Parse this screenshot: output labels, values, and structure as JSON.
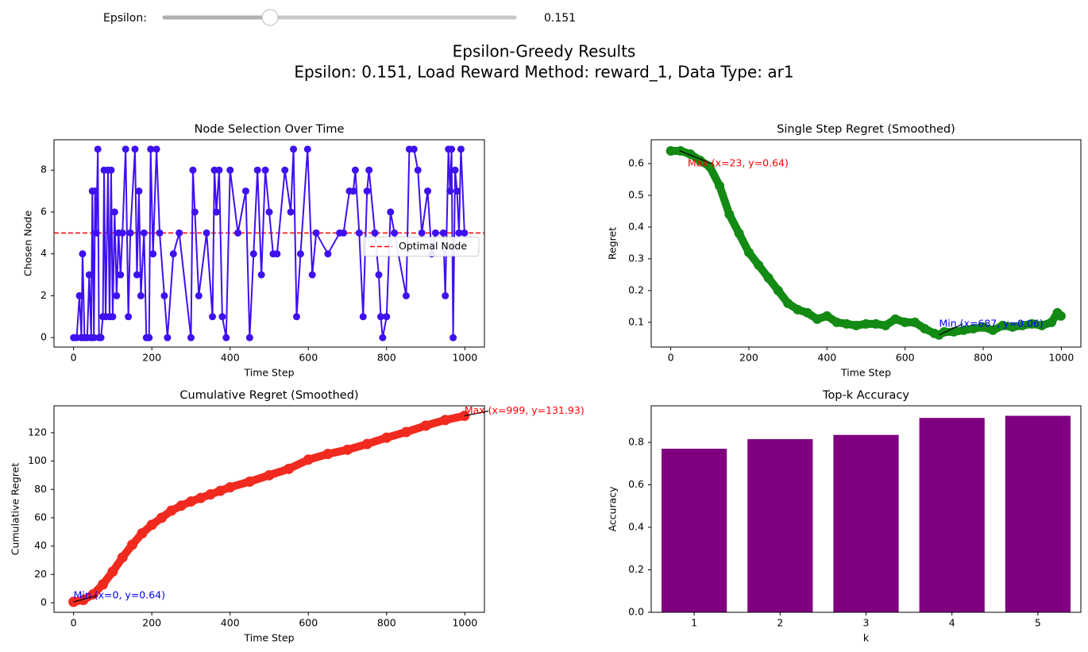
{
  "controls": {
    "slider_label": "Epsilon:",
    "slider_value": 0.151
  },
  "figure": {
    "title": "Epsilon-Greedy Results",
    "subtitle": "Epsilon: 0.151, Load Reward Method: reward_1, Data Type: ar1"
  },
  "chart_data": [
    {
      "type": "line",
      "title": "Node Selection Over Time",
      "xlabel": "Time Step",
      "ylabel": "Chosen Node",
      "x": [
        0,
        8,
        15,
        20,
        23,
        28,
        35,
        40,
        45,
        48,
        52,
        55,
        58,
        62,
        65,
        70,
        75,
        78,
        82,
        88,
        92,
        96,
        100,
        105,
        110,
        115,
        120,
        125,
        133,
        140,
        145,
        157,
        162,
        167,
        172,
        180,
        186,
        193,
        197,
        203,
        212,
        220,
        232,
        240,
        255,
        270,
        300,
        305,
        310,
        320,
        340,
        355,
        360,
        365,
        372,
        380,
        390,
        400,
        420,
        440,
        450,
        460,
        470,
        480,
        490,
        500,
        510,
        520,
        540,
        555,
        562,
        570,
        580,
        598,
        610,
        620,
        650,
        680,
        690,
        705,
        715,
        720,
        730,
        740,
        750,
        755,
        770,
        780,
        785,
        790,
        800,
        810,
        820,
        850,
        858,
        870,
        880,
        890,
        905,
        915,
        925,
        945,
        950,
        958,
        962,
        966,
        970,
        975,
        980,
        985,
        990,
        999
      ],
      "series": [
        {
          "name": "Chosen Node",
          "color": "#3f10f0",
          "values": [
            0,
            0,
            2,
            0,
            4,
            0,
            0,
            3,
            0,
            7,
            0,
            7,
            5,
            9,
            0,
            0,
            1,
            8,
            1,
            8,
            1,
            8,
            1,
            6,
            2,
            5,
            3,
            5,
            9,
            1,
            5,
            9,
            3,
            7,
            2,
            5,
            0,
            0,
            9,
            4,
            9,
            5,
            2,
            0,
            4,
            5,
            0,
            8,
            6,
            2,
            5,
            1,
            8,
            6,
            8,
            1,
            0,
            8,
            5,
            7,
            0,
            4,
            8,
            3,
            8,
            6,
            4,
            4,
            8,
            6,
            9,
            1,
            4,
            9,
            3,
            5,
            4,
            5,
            5,
            7,
            7,
            8,
            5,
            1,
            7,
            8,
            5,
            3,
            1,
            0,
            1,
            6,
            5,
            2,
            9,
            9,
            8,
            5,
            7,
            4,
            5,
            5,
            2,
            9,
            7,
            9,
            0,
            8,
            7,
            5,
            9,
            5
          ]
        }
      ],
      "reference_line": {
        "name": "Optimal Node",
        "value": 5,
        "color": "#ff0000"
      },
      "legend": "center right",
      "xlim": [
        -50,
        1050
      ],
      "xticks": [
        0,
        200,
        400,
        600,
        800,
        1000
      ],
      "ylim": [
        -0.45,
        9.45
      ],
      "yticks": [
        0,
        2,
        4,
        6,
        8
      ]
    },
    {
      "type": "line",
      "title": "Single Step Regret (Smoothed)",
      "xlabel": "Time Step",
      "ylabel": "Regret",
      "x": [
        0,
        25,
        50,
        75,
        100,
        125,
        150,
        175,
        200,
        225,
        250,
        275,
        300,
        325,
        350,
        375,
        400,
        425,
        450,
        475,
        500,
        525,
        550,
        575,
        600,
        625,
        650,
        675,
        687,
        700,
        725,
        750,
        775,
        800,
        825,
        850,
        875,
        900,
        925,
        950,
        975,
        990,
        999
      ],
      "series": [
        {
          "name": "Regret",
          "color": "#138a13",
          "values": [
            0.64,
            0.64,
            0.63,
            0.61,
            0.59,
            0.53,
            0.44,
            0.38,
            0.32,
            0.28,
            0.24,
            0.2,
            0.16,
            0.14,
            0.13,
            0.11,
            0.12,
            0.1,
            0.095,
            0.09,
            0.095,
            0.095,
            0.09,
            0.11,
            0.1,
            0.1,
            0.08,
            0.065,
            0.06,
            0.07,
            0.07,
            0.075,
            0.08,
            0.085,
            0.075,
            0.09,
            0.085,
            0.09,
            0.095,
            0.09,
            0.1,
            0.13,
            0.12
          ]
        }
      ],
      "annotations": [
        {
          "text": "Max (x=23, y=0.64)",
          "x": 23,
          "y": 0.64,
          "color": "#ff0000"
        },
        {
          "text": "Min (x=687, y=0.06)",
          "x": 687,
          "y": 0.06,
          "color": "#0000ff"
        }
      ],
      "xlim": [
        -50,
        1050
      ],
      "xticks": [
        0,
        200,
        400,
        600,
        800,
        1000
      ],
      "ylim": [
        0.022,
        0.675
      ],
      "yticks": [
        0.1,
        0.2,
        0.3,
        0.4,
        0.5,
        0.6
      ]
    },
    {
      "type": "line",
      "title": "Cumulative Regret (Smoothed)",
      "xlabel": "Time Step",
      "ylabel": "Cumulative Regret",
      "x": [
        0,
        25,
        50,
        75,
        100,
        125,
        150,
        175,
        200,
        225,
        250,
        275,
        300,
        325,
        350,
        375,
        400,
        450,
        500,
        550,
        600,
        650,
        700,
        750,
        800,
        850,
        900,
        950,
        999
      ],
      "series": [
        {
          "name": "Cumulative Regret",
          "color": "#f02a1e",
          "values": [
            0.64,
            2,
            6,
            13,
            22,
            32,
            41,
            49,
            55,
            60,
            65,
            68.5,
            71.5,
            74,
            76.5,
            79,
            81.5,
            85.5,
            90,
            94.5,
            101,
            105,
            108,
            112,
            116.5,
            120.5,
            125,
            129,
            131.93
          ]
        }
      ],
      "annotations": [
        {
          "text": "Max (x=999, y=131.93)",
          "x": 999,
          "y": 131.93,
          "color": "#ff0000"
        },
        {
          "text": "Min (x=0, y=0.64)",
          "x": 0,
          "y": 0.64,
          "color": "#0000ff"
        }
      ],
      "xlim": [
        -50,
        1050
      ],
      "xticks": [
        0,
        200,
        400,
        600,
        800,
        1000
      ],
      "ylim": [
        -6.7,
        139
      ],
      "yticks": [
        0,
        20,
        40,
        60,
        80,
        100,
        120
      ]
    },
    {
      "type": "bar",
      "title": "Top-k Accuracy",
      "xlabel": "k",
      "ylabel": "Accuracy",
      "categories": [
        "1",
        "2",
        "3",
        "4",
        "5"
      ],
      "values": [
        0.77,
        0.815,
        0.835,
        0.915,
        0.925
      ],
      "color": "#800080",
      "ylim": [
        0,
        0.972
      ],
      "yticks": [
        {
          "value": 0,
          "label": "0.0"
        },
        0.2,
        0.4,
        0.6,
        0.8
      ]
    }
  ]
}
